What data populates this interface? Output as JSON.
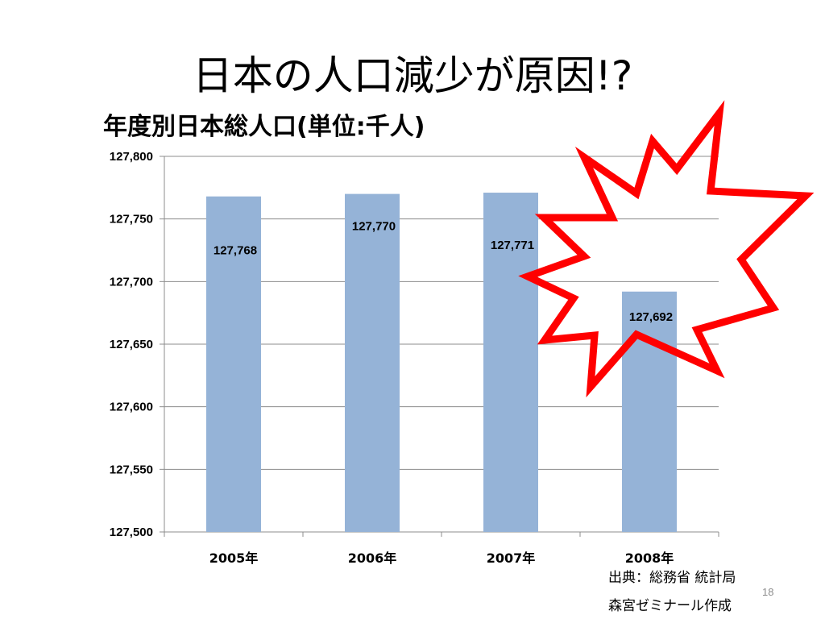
{
  "slide": {
    "title": "日本の人口減少が原因!?",
    "source": "出典：総務省 統計局",
    "author": "森宮ゼミナール作成",
    "page_number": "18"
  },
  "colors": {
    "bar": "#95b3d7",
    "grid": "#8c8c8c",
    "burst": "#ff0000"
  },
  "chart_data": {
    "type": "bar",
    "title": "年度別日本総人口(単位:千人)",
    "categories": [
      "2005年",
      "2006年",
      "2007年",
      "2008年"
    ],
    "values": [
      127768,
      127770,
      127771,
      127692
    ],
    "data_labels": [
      "127,768",
      "127,770",
      "127,771",
      "127,692"
    ],
    "ylim": [
      127500,
      127800
    ],
    "yticks": [
      127500,
      127550,
      127600,
      127650,
      127700,
      127750,
      127800
    ],
    "ytick_labels": [
      "127,500",
      "127,550",
      "127,600",
      "127,650",
      "127,700",
      "127,750",
      "127,800"
    ],
    "grid": true,
    "xlabel": "",
    "ylabel": ""
  }
}
